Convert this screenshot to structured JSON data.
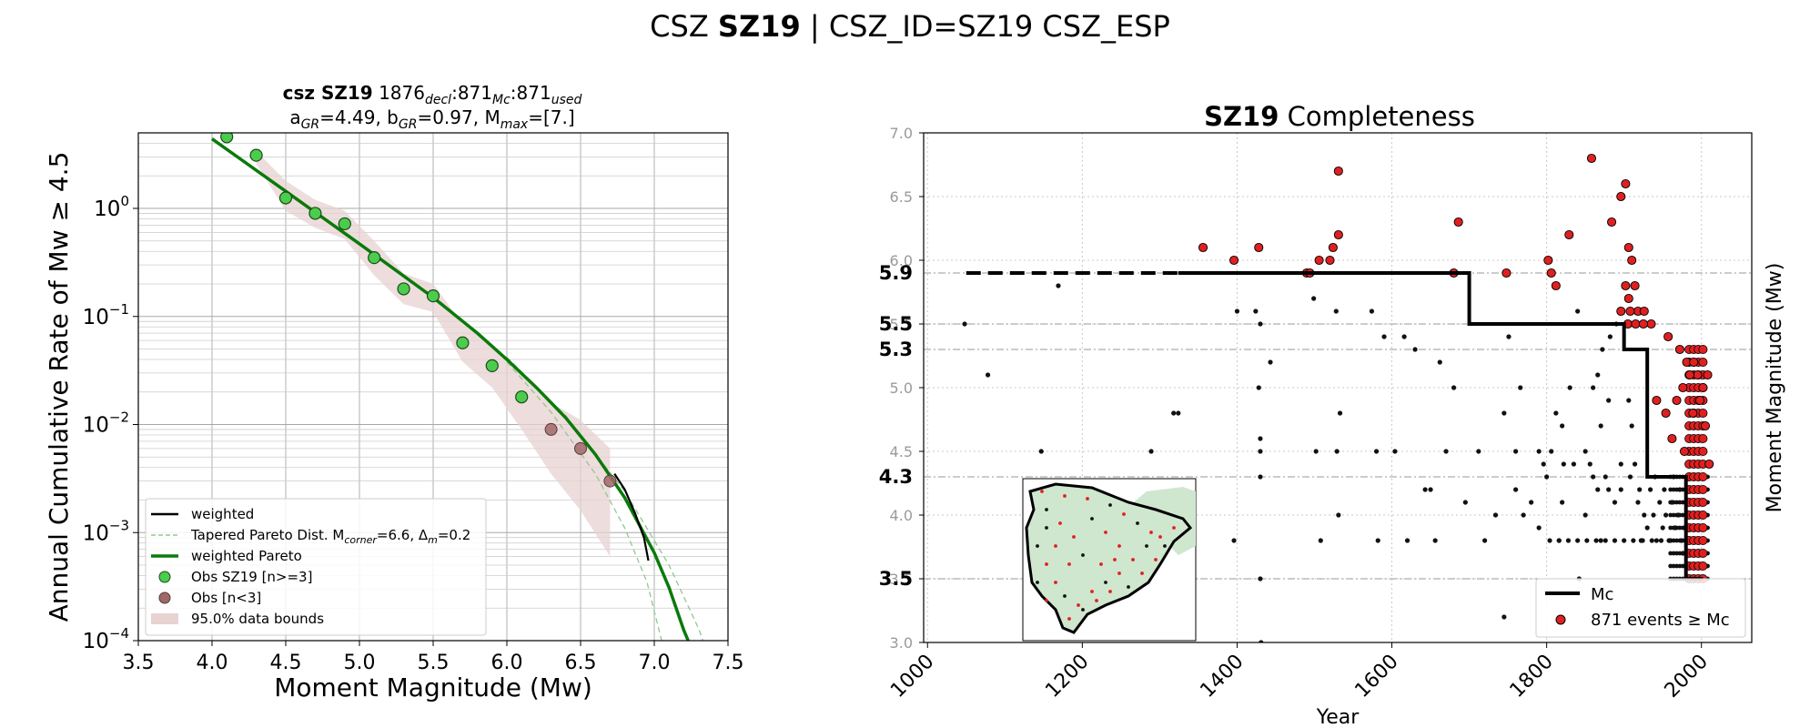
{
  "figure": {
    "title_pre": "CSZ ",
    "title_bold": "SZ19",
    "title_post": " | CSZ_ID=SZ19 CSZ_ESP"
  },
  "colors": {
    "obs": "#4ccc4c",
    "obs_few": "#a06868",
    "pareto": "#0a7a0a",
    "tapered": "#90c890",
    "bounds": "#e8d2d2",
    "weighted": "#000000",
    "event_red": "#e02020",
    "event_black": "#111111",
    "map_land": "#cfe6cf"
  },
  "chart_data": [
    {
      "type": "scatter",
      "name": "gr-recurrence",
      "title_bold": "csz SZ19",
      "title_counts": "1876",
      "sub_decl": "decl",
      "title_c2": ":871",
      "sub_mc": "Mc",
      "title_c3": ":871",
      "sub_used": "used",
      "line2_a": "a",
      "sub_gr_a": "GR",
      "line2_a_val": "=4.49,  b",
      "sub_gr_b": "GR",
      "line2_b_val": "=0.97, M",
      "sub_max": "max",
      "line2_max_val": "=[7.]",
      "xlabel": "Moment Magnitude (Mw)",
      "ylabel": "Annual Cumulative Rate of Mw ≥ 4.5",
      "xlim": [
        3.5,
        7.5
      ],
      "ylim": [
        0.0001,
        5
      ],
      "yscale": "log",
      "xticks": [
        "3.5",
        "4.0",
        "4.5",
        "5.0",
        "5.5",
        "6.0",
        "6.5",
        "7.0",
        "7.5"
      ],
      "yticks": [
        {
          "v": 0.0001,
          "base": "10",
          "exp": "−4"
        },
        {
          "v": 0.001,
          "base": "10",
          "exp": "−3"
        },
        {
          "v": 0.01,
          "base": "10",
          "exp": "−2"
        },
        {
          "v": 0.1,
          "base": "10",
          "exp": "−1"
        },
        {
          "v": 1,
          "base": "10",
          "exp": "0"
        }
      ],
      "grid": true,
      "legend_position": "lower-left",
      "legend": [
        {
          "kind": "line",
          "label": "weighted",
          "label_sub": "",
          "label_post": ""
        },
        {
          "kind": "dashed",
          "label": "Tapered Pareto Dist. M",
          "label_sub": "corner",
          "label_post": "=6.6, Δ",
          "label_sub2": "m",
          "label_post2": "=0.2"
        },
        {
          "kind": "thick",
          "label": "weighted Pareto",
          "label_sub": "",
          "label_post": ""
        },
        {
          "kind": "obs",
          "label": "Obs SZ19 [n>=3]",
          "label_sub": "",
          "label_post": ""
        },
        {
          "kind": "obs_few",
          "label": "Obs [n<3]",
          "label_sub": "",
          "label_post": ""
        },
        {
          "kind": "patch",
          "label": "95.0% data bounds",
          "label_sub": "",
          "label_post": ""
        }
      ],
      "obs": [
        {
          "x": 4.1,
          "y": 4.6
        },
        {
          "x": 4.3,
          "y": 3.1
        },
        {
          "x": 4.5,
          "y": 1.25
        },
        {
          "x": 4.7,
          "y": 0.9
        },
        {
          "x": 4.9,
          "y": 0.72
        },
        {
          "x": 5.1,
          "y": 0.35
        },
        {
          "x": 5.3,
          "y": 0.18
        },
        {
          "x": 5.5,
          "y": 0.155
        },
        {
          "x": 5.7,
          "y": 0.057
        },
        {
          "x": 5.9,
          "y": 0.035
        },
        {
          "x": 6.1,
          "y": 0.018
        }
      ],
      "obs_few": [
        {
          "x": 6.3,
          "y": 0.009
        },
        {
          "x": 6.5,
          "y": 0.006
        },
        {
          "x": 6.7,
          "y": 0.003
        }
      ],
      "bounds_upper": [
        [
          4.3,
          3.4
        ],
        [
          4.5,
          1.8
        ],
        [
          4.7,
          1.2
        ],
        [
          4.9,
          0.95
        ],
        [
          5.1,
          0.5
        ],
        [
          5.3,
          0.25
        ],
        [
          5.5,
          0.2
        ],
        [
          5.7,
          0.085
        ],
        [
          5.9,
          0.055
        ],
        [
          6.1,
          0.03
        ],
        [
          6.3,
          0.016
        ],
        [
          6.5,
          0.011
        ],
        [
          6.7,
          0.006
        ]
      ],
      "bounds_lower": [
        [
          4.3,
          2.6
        ],
        [
          4.5,
          0.95
        ],
        [
          4.7,
          0.66
        ],
        [
          4.9,
          0.52
        ],
        [
          5.1,
          0.24
        ],
        [
          5.3,
          0.13
        ],
        [
          5.5,
          0.11
        ],
        [
          5.7,
          0.038
        ],
        [
          5.9,
          0.022
        ],
        [
          6.1,
          0.009
        ],
        [
          6.3,
          0.0035
        ],
        [
          6.5,
          0.0016
        ],
        [
          6.7,
          0.0006
        ]
      ],
      "pareto_line": [
        [
          4.0,
          4.4
        ],
        [
          4.5,
          1.44
        ],
        [
          5.0,
          0.47
        ],
        [
          5.5,
          0.15
        ],
        [
          5.8,
          0.07
        ],
        [
          6.0,
          0.04
        ],
        [
          6.2,
          0.022
        ],
        [
          6.4,
          0.0115
        ],
        [
          6.6,
          0.0053
        ],
        [
          6.8,
          0.0021
        ],
        [
          7.0,
          0.00065
        ],
        [
          7.1,
          0.00031
        ],
        [
          7.2,
          0.000125
        ],
        [
          7.23,
          0.0001
        ]
      ],
      "tapered_1": [
        [
          6.0,
          0.038
        ],
        [
          6.3,
          0.013
        ],
        [
          6.6,
          0.0035
        ],
        [
          6.8,
          0.0011
        ],
        [
          6.95,
          0.00035
        ],
        [
          7.05,
          0.0001
        ]
      ],
      "tapered_2": [
        [
          6.0,
          0.042
        ],
        [
          6.4,
          0.012
        ],
        [
          6.8,
          0.0024
        ],
        [
          7.1,
          0.0005
        ],
        [
          7.3,
          0.00013
        ],
        [
          7.33,
          0.0001
        ]
      ],
      "weighted_line": [
        [
          6.73,
          0.0035
        ],
        [
          6.8,
          0.0025
        ],
        [
          6.87,
          0.0015
        ],
        [
          6.93,
          0.0009
        ],
        [
          6.96,
          0.00055
        ]
      ]
    },
    {
      "type": "scatter",
      "name": "completeness",
      "title_bold": "SZ19",
      "title_rest": " Completeness",
      "xlabel": "Year",
      "ylabel": "Moment Magnitude (Mw)",
      "xlim": [
        995,
        2065
      ],
      "ylim": [
        3.0,
        7.0
      ],
      "xticks": [
        1000,
        1200,
        1400,
        1600,
        1800,
        2000
      ],
      "yticks": [
        "3.0",
        "3.5",
        "4.0",
        "4.5",
        "5.0",
        "5.5",
        "6.0",
        "6.5",
        "7.0"
      ],
      "mc_labels": [
        "5.9",
        "5.5",
        "5.3",
        "4.3",
        "3.5"
      ],
      "mc_values": [
        5.9,
        5.5,
        5.3,
        4.3,
        3.5
      ],
      "mc_step": [
        [
          1324,
          5.9
        ],
        [
          1700,
          5.9
        ],
        [
          1700,
          5.5
        ],
        [
          1900,
          5.5
        ],
        [
          1900,
          5.3
        ],
        [
          1930,
          5.3
        ],
        [
          1930,
          4.3
        ],
        [
          1980,
          4.3
        ],
        [
          1980,
          3.5
        ],
        [
          2002,
          3.5
        ]
      ],
      "mc_dashed": [
        [
          1050,
          5.9
        ],
        [
          1324,
          5.9
        ]
      ],
      "legend_position": "lower-right",
      "legend_mc": "Mc",
      "legend_events": "871 events  ≥  Mc",
      "red_events": [
        [
          1356,
          6.1
        ],
        [
          1396,
          6.0
        ],
        [
          1428,
          6.1
        ],
        [
          1490,
          5.9
        ],
        [
          1494,
          5.9
        ],
        [
          1506,
          6.0
        ],
        [
          1520,
          6.0
        ],
        [
          1524,
          6.1
        ],
        [
          1531,
          6.2
        ],
        [
          1531,
          6.7
        ],
        [
          1680,
          5.9
        ],
        [
          1686,
          6.3
        ],
        [
          1748,
          5.9
        ],
        [
          1802,
          6.0
        ],
        [
          1806,
          5.9
        ],
        [
          1812,
          5.8
        ],
        [
          1829,
          6.2
        ],
        [
          1858,
          6.8
        ],
        [
          1884,
          6.3
        ],
        [
          1896,
          6.5
        ],
        [
          1902,
          6.6
        ],
        [
          1906,
          5.7
        ],
        [
          1910,
          6.0
        ],
        [
          1906,
          6.1
        ],
        [
          1902,
          5.8
        ],
        [
          1914,
          5.8
        ],
        [
          1896,
          5.6
        ],
        [
          1918,
          5.6
        ],
        [
          1926,
          5.6
        ],
        [
          1908,
          5.6
        ],
        [
          1935,
          5.5
        ],
        [
          1905,
          5.5
        ],
        [
          1915,
          5.5
        ],
        [
          1925,
          5.5
        ],
        [
          1957,
          5.4
        ],
        [
          1972,
          5.3
        ],
        [
          1981,
          5.2
        ],
        [
          1990,
          5.2
        ],
        [
          1995,
          5.1
        ],
        [
          2008,
          5.1
        ],
        [
          1985,
          5.1
        ],
        [
          2002,
          5.0
        ],
        [
          1976,
          5.0
        ],
        [
          1998,
          4.9
        ],
        [
          1968,
          4.9
        ],
        [
          1942,
          4.9
        ],
        [
          1954,
          4.8
        ],
        [
          1989,
          4.8
        ],
        [
          2005,
          4.7
        ],
        [
          1962,
          4.6
        ],
        [
          1978,
          4.5
        ],
        [
          2010,
          4.4
        ]
      ],
      "black_events": [
        [
          1048,
          5.5
        ],
        [
          1078,
          5.1
        ],
        [
          1169,
          5.8
        ],
        [
          1147,
          4.5
        ],
        [
          1289,
          4.5
        ],
        [
          1318,
          4.8
        ],
        [
          1324,
          4.8
        ],
        [
          1400,
          5.6
        ],
        [
          1424,
          5.6
        ],
        [
          1430,
          5.5
        ],
        [
          1443,
          5.2
        ],
        [
          1396,
          3.8
        ],
        [
          1430,
          3.5
        ],
        [
          1428,
          5.0
        ],
        [
          1430,
          4.6
        ],
        [
          1430,
          4.5
        ],
        [
          1430,
          4.3
        ],
        [
          1431,
          3.0
        ],
        [
          1499,
          5.7
        ],
        [
          1502,
          4.5
        ],
        [
          1508,
          3.8
        ],
        [
          1528,
          5.6
        ],
        [
          1533,
          4.8
        ],
        [
          1529,
          4.5
        ],
        [
          1531,
          4.0
        ],
        [
          1574,
          5.6
        ],
        [
          1580,
          4.5
        ],
        [
          1582,
          3.8
        ],
        [
          1590,
          5.4
        ],
        [
          1604,
          4.5
        ],
        [
          1616,
          5.4
        ],
        [
          1620,
          3.8
        ],
        [
          1630,
          5.3
        ],
        [
          1643,
          4.2
        ],
        [
          1650,
          4.2
        ],
        [
          1656,
          3.8
        ],
        [
          1662,
          5.2
        ],
        [
          1670,
          4.5
        ],
        [
          1680,
          5.0
        ],
        [
          1695,
          4.1
        ],
        [
          1712,
          4.5
        ],
        [
          1720,
          3.8
        ],
        [
          1734,
          4.0
        ],
        [
          1745,
          4.8
        ],
        [
          1751,
          5.4
        ],
        [
          1760,
          4.5
        ],
        [
          1766,
          5.0
        ],
        [
          1790,
          4.5
        ],
        [
          1745,
          3.2
        ],
        [
          1790,
          3.9
        ],
        [
          1812,
          4.8
        ],
        [
          1816,
          3.8
        ],
        [
          1822,
          4.4
        ],
        [
          1835,
          4.4
        ],
        [
          1842,
          3.5
        ],
        [
          1840,
          5.6
        ],
        [
          1856,
          4.4
        ],
        [
          1866,
          4.2
        ],
        [
          1870,
          3.8
        ],
        [
          1880,
          4.2
        ],
        [
          1888,
          4.1
        ],
        [
          1896,
          4.4
        ],
        [
          1760,
          4.2
        ],
        [
          1770,
          4.0
        ],
        [
          1780,
          4.1
        ],
        [
          1800,
          4.3
        ],
        [
          1820,
          4.1
        ],
        [
          1850,
          4.0
        ],
        [
          1860,
          4.3
        ],
        [
          1906,
          4.9
        ],
        [
          1910,
          4.7
        ],
        [
          1914,
          4.4
        ],
        [
          1918,
          4.1
        ],
        [
          1922,
          3.8
        ],
        [
          1926,
          4.0
        ],
        [
          1930,
          3.9
        ],
        [
          1934,
          4.2
        ],
        [
          1938,
          4.0
        ],
        [
          1942,
          3.8
        ],
        [
          1946,
          4.1
        ],
        [
          1950,
          3.9
        ],
        [
          1954,
          4.0
        ],
        [
          1958,
          3.8
        ],
        [
          1962,
          4.1
        ],
        [
          1966,
          3.9
        ],
        [
          1970,
          4.0
        ],
        [
          1974,
          3.8
        ],
        [
          1978,
          3.9
        ],
        [
          1984,
          3.7
        ],
        [
          1990,
          3.6
        ],
        [
          1996,
          3.8
        ],
        [
          2002,
          3.6
        ],
        [
          1988,
          3.5
        ],
        [
          1994,
          3.7
        ],
        [
          1976,
          3.7
        ],
        [
          1960,
          3.8
        ],
        [
          1948,
          3.8
        ],
        [
          1936,
          3.8
        ],
        [
          1924,
          3.8
        ],
        [
          1912,
          3.8
        ],
        [
          1900,
          3.8
        ],
        [
          1888,
          3.8
        ],
        [
          1876,
          3.8
        ],
        [
          1864,
          3.8
        ],
        [
          1852,
          3.8
        ],
        [
          1840,
          3.8
        ],
        [
          1828,
          3.8
        ],
        [
          1816,
          3.8
        ],
        [
          1804,
          3.8
        ],
        [
          1880,
          4.9
        ],
        [
          1870,
          4.7
        ],
        [
          1860,
          5.0
        ],
        [
          1850,
          4.5
        ],
        [
          1890,
          5.5
        ],
        [
          1882,
          5.4
        ],
        [
          1872,
          5.3
        ],
        [
          1866,
          5.1
        ],
        [
          1876,
          4.3
        ],
        [
          1896,
          4.2
        ],
        [
          1908,
          4.3
        ],
        [
          1920,
          4.2
        ],
        [
          1940,
          4.3
        ],
        [
          1952,
          4.2
        ],
        [
          1964,
          4.3
        ],
        [
          1972,
          4.2
        ],
        [
          1984,
          4.0
        ],
        [
          1998,
          4.2
        ],
        [
          1830,
          5.0
        ],
        [
          1820,
          4.7
        ],
        [
          1806,
          4.5
        ],
        [
          1796,
          4.4
        ]
      ]
    }
  ]
}
